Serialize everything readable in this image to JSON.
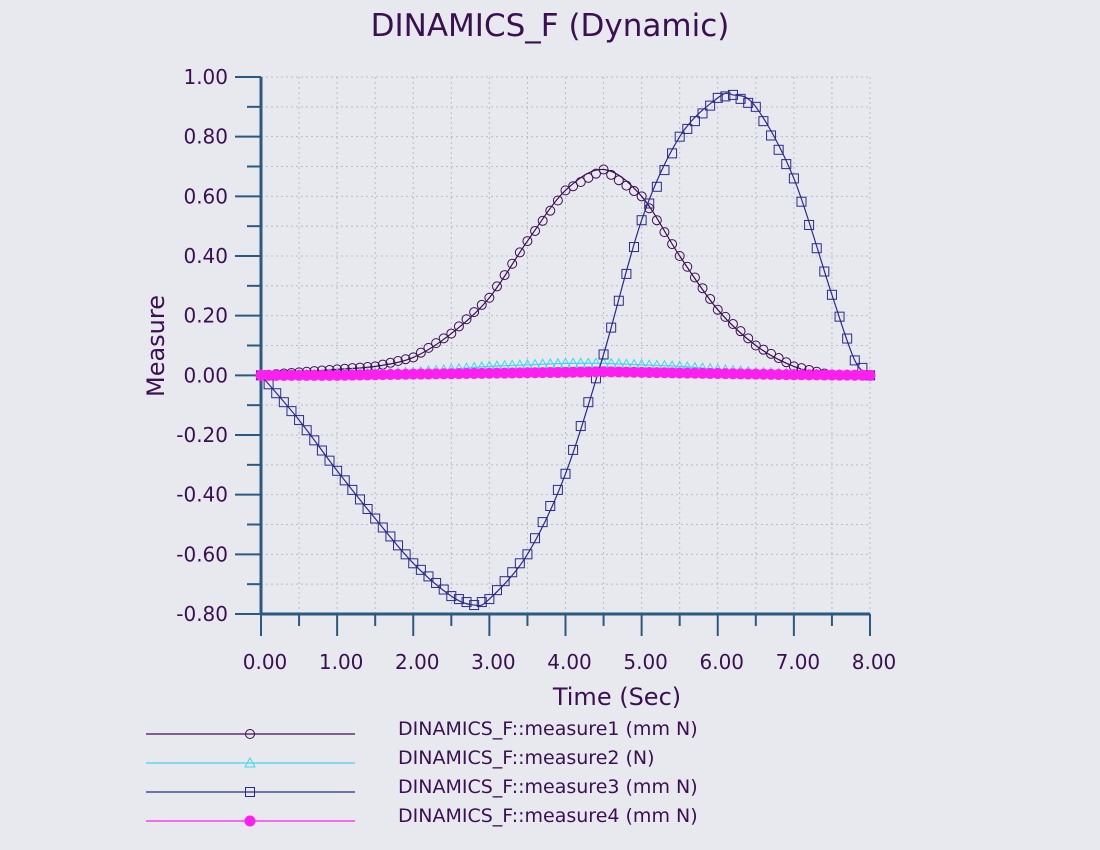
{
  "chart_data": {
    "type": "line",
    "title": "DINAMICS_F (Dynamic)",
    "xlabel": "Time (Sec)",
    "ylabel": "Measure",
    "xlim": [
      0,
      8
    ],
    "ylim": [
      -0.8,
      1.0
    ],
    "x_ticks": [
      "0.00",
      "1.00",
      "2.00",
      "3.00",
      "4.00",
      "5.00",
      "6.00",
      "7.00",
      "8.00"
    ],
    "y_ticks": [
      "1.00",
      "0.80",
      "0.60",
      "0.40",
      "0.20",
      "0.00",
      "-0.20",
      "-0.40",
      "-0.60",
      "-0.80"
    ],
    "grid": true,
    "legend_position": "bottom",
    "sample_step": 0.1,
    "series": [
      {
        "name": "DINAMICS_F::measure1 (mm N)",
        "color": "#3a1050",
        "marker": "circle-open",
        "x": [
          0,
          0.5,
          1,
          1.5,
          2,
          2.5,
          3,
          3.5,
          4,
          4.5,
          5,
          5.5,
          6,
          6.5,
          7,
          7.5,
          8
        ],
        "y": [
          0,
          0.01,
          0.02,
          0.03,
          0.06,
          0.14,
          0.26,
          0.45,
          0.62,
          0.69,
          0.6,
          0.4,
          0.22,
          0.1,
          0.03,
          0,
          0
        ]
      },
      {
        "name": "DINAMICS_F::measure2 (N)",
        "color": "#40d8e8",
        "marker": "triangle-open",
        "x": [
          0,
          1,
          2,
          2.5,
          3,
          3.5,
          4,
          4.5,
          5,
          5.5,
          6,
          6.5,
          7,
          8
        ],
        "y": [
          0,
          0.005,
          0.01,
          0.02,
          0.03,
          0.035,
          0.04,
          0.04,
          0.035,
          0.03,
          0.02,
          0.01,
          0.005,
          0
        ]
      },
      {
        "name": "DINAMICS_F::measure3 (mm N)",
        "color": "#2a2a8a",
        "marker": "square-open",
        "x": [
          0,
          0.5,
          1,
          1.5,
          2,
          2.5,
          2.8,
          3,
          3.5,
          4,
          4.5,
          5,
          5.5,
          6,
          6.2,
          6.5,
          7,
          7.5,
          7.8,
          8
        ],
        "y": [
          0,
          -0.15,
          -0.32,
          -0.48,
          -0.63,
          -0.74,
          -0.77,
          -0.75,
          -0.6,
          -0.33,
          0.07,
          0.52,
          0.8,
          0.93,
          0.94,
          0.9,
          0.66,
          0.27,
          0.05,
          0
        ]
      },
      {
        "name": "DINAMICS_F::measure4 (mm N)",
        "color": "#ff1ef0",
        "marker": "circle-filled",
        "x": [
          0,
          1,
          2,
          3,
          4,
          4.5,
          5,
          6,
          7,
          8
        ],
        "y": [
          0,
          0,
          0.004,
          0.007,
          0.01,
          0.012,
          0.01,
          0.006,
          0.002,
          0
        ]
      }
    ]
  }
}
